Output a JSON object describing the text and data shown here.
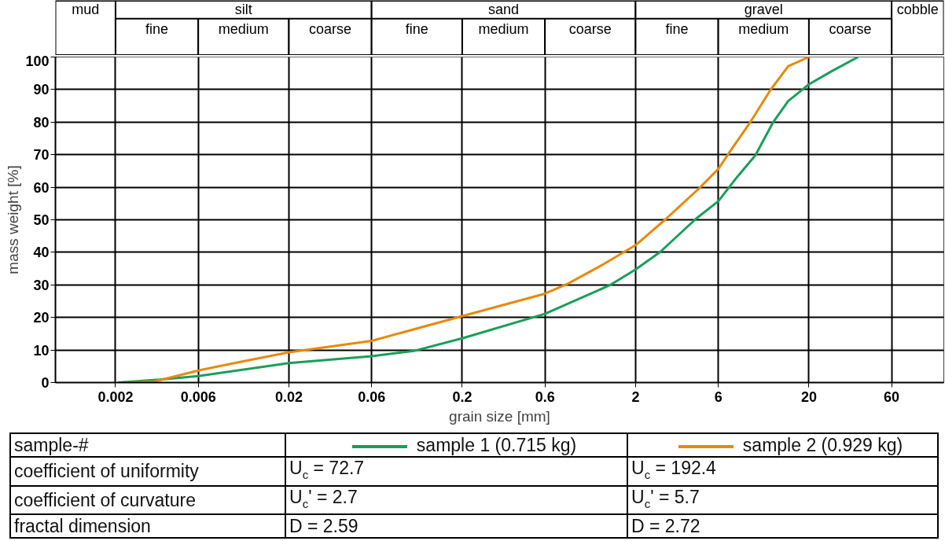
{
  "chart_data": {
    "type": "line",
    "xlabel": "grain size [mm]",
    "ylabel": "mass weight [%]",
    "log": "x",
    "grid": true,
    "legend": "bottom",
    "line_style": "solid",
    "xlim": [
      0.0009,
      120
    ],
    "ylim": [
      0,
      100
    ],
    "xticks": [
      0.002,
      0.006,
      0.02,
      0.06,
      0.2,
      0.6,
      2,
      6,
      20,
      60
    ],
    "yticks": [
      0,
      10,
      20,
      30,
      40,
      50,
      60,
      70,
      80,
      90,
      100
    ],
    "series": [
      {
        "name": "sample 1 (0.715 kg)",
        "color": "#1a9e5a",
        "x": [
          0.00207,
          0.0036,
          0.006,
          0.02,
          0.06,
          0.105,
          0.2,
          0.6,
          1.42,
          2,
          2.77,
          4.46,
          6,
          7.75,
          9.82,
          12.45,
          15.2,
          20,
          27.4,
          38.4
        ],
        "values": [
          0,
          0.9,
          2,
          6,
          8.1,
          9.7,
          13.6,
          21.1,
          29.9,
          34.7,
          40.1,
          50.3,
          55.7,
          63.3,
          69.8,
          80,
          86.5,
          91.6,
          95.8,
          100
        ]
      },
      {
        "name": "sample 2 (0.929 kg)",
        "color": "#e8890c",
        "x": [
          0.00229,
          0.00334,
          0.006,
          0.0097,
          0.02,
          0.06,
          0.2,
          0.6,
          0.817,
          1.31,
          2,
          3.0,
          4.64,
          6,
          7.16,
          9.08,
          11.97,
          15.2,
          20
        ],
        "values": [
          0,
          0.3,
          3.7,
          6,
          9.3,
          12.8,
          20.4,
          27.3,
          30.4,
          36.4,
          42.2,
          50.3,
          59.6,
          65.6,
          71.7,
          79.6,
          89.8,
          97.2,
          100
        ]
      }
    ],
    "bands": [
      {
        "axis": "x",
        "from": 0.0009,
        "to": 0.002,
        "label": "mud"
      },
      {
        "axis": "x",
        "from": 0.002,
        "to": 0.06,
        "label": "silt"
      },
      {
        "axis": "x",
        "from": 0.06,
        "to": 2,
        "label": "sand"
      },
      {
        "axis": "x",
        "from": 2,
        "to": 60,
        "label": "gravel"
      },
      {
        "axis": "x",
        "from": 60,
        "to": 120,
        "label": "cobble"
      },
      {
        "axis": "x",
        "from": 0.002,
        "to": 0.006,
        "label": "fine"
      },
      {
        "axis": "x",
        "from": 0.006,
        "to": 0.02,
        "label": "medium"
      },
      {
        "axis": "x",
        "from": 0.02,
        "to": 0.06,
        "label": "coarse"
      },
      {
        "axis": "x",
        "from": 0.06,
        "to": 0.2,
        "label": "fine"
      },
      {
        "axis": "x",
        "from": 0.2,
        "to": 0.6,
        "label": "medium"
      },
      {
        "axis": "x",
        "from": 0.6,
        "to": 2,
        "label": "coarse"
      },
      {
        "axis": "x",
        "from": 2,
        "to": 6,
        "label": "fine"
      },
      {
        "axis": "x",
        "from": 6,
        "to": 20,
        "label": "medium"
      },
      {
        "axis": "x",
        "from": 20,
        "to": 60,
        "label": "coarse"
      }
    ],
    "annotations": [
      "sample-#",
      "coefficient of uniformity",
      "U$_{c}$ = 72.7",
      "U$_{c}$ = 192.4",
      "coefficient of curvature",
      "U$_{c}$' = 2.7",
      "U$_{c}$' = 5.7",
      "fractal dimension",
      "D = 2.59",
      "D = 2.72"
    ]
  }
}
